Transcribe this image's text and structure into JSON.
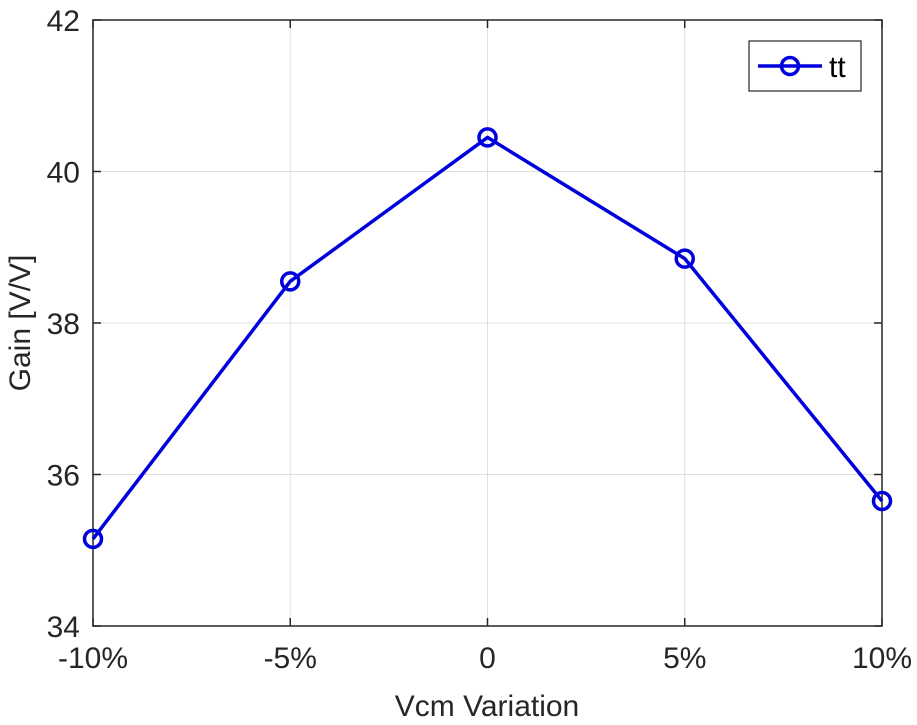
{
  "chart_data": {
    "type": "line",
    "categories": [
      "-10%",
      "-5%",
      "0",
      "5%",
      "10%"
    ],
    "series": [
      {
        "name": "tt",
        "values": [
          35.15,
          38.55,
          40.45,
          38.85,
          35.65
        ],
        "color": "#0000dd",
        "marker": "circle-open"
      }
    ],
    "xlabel": "Vcm Variation",
    "ylabel": "Gain [V/V]",
    "ylim": [
      34,
      42
    ],
    "yticks": [
      "34",
      "36",
      "38",
      "40",
      "42"
    ],
    "grid": true,
    "legend_position": "top-right"
  }
}
